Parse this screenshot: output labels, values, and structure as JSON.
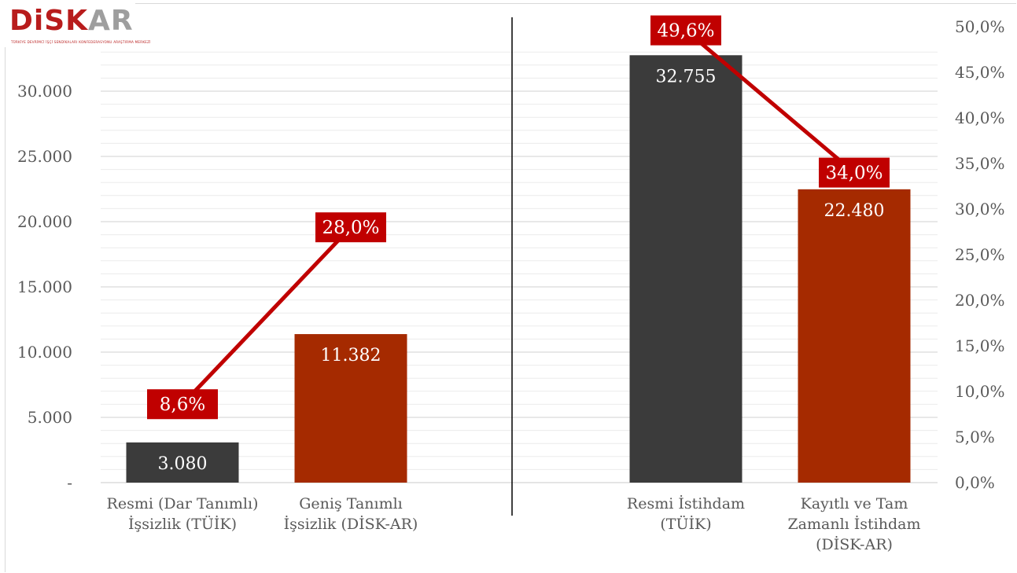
{
  "logo": {
    "main": "DiSK",
    "accent": "AR",
    "subtitle": "TÜRKİYE DEVRİMCİ İŞÇİ SENDİKALARI KONFEDERASYONU ARAŞTIRMA MERKEZİ"
  },
  "chart_data": {
    "type": "bar",
    "title": "",
    "grid": true,
    "colors": {
      "official": "#3b3b3b",
      "alternative": "#a52a00",
      "line": "#c00000",
      "label_box": "#c00000"
    },
    "left_axis": {
      "range": [
        0,
        33000
      ],
      "ticks": [
        {
          "value": 0,
          "label": "-"
        },
        {
          "value": 5000,
          "label": "5.000"
        },
        {
          "value": 10000,
          "label": "10.000"
        },
        {
          "value": 15000,
          "label": "15.000"
        },
        {
          "value": 20000,
          "label": "20.000"
        },
        {
          "value": 25000,
          "label": "25.000"
        },
        {
          "value": 30000,
          "label": "30.000"
        }
      ]
    },
    "right_axis": {
      "range": [
        0,
        52
      ],
      "ticks": [
        {
          "value": 0,
          "label": "0,0%"
        },
        {
          "value": 5,
          "label": "5,0%"
        },
        {
          "value": 10,
          "label": "10,0%"
        },
        {
          "value": 15,
          "label": "15,0%"
        },
        {
          "value": 20,
          "label": "20,0%"
        },
        {
          "value": 25,
          "label": "25,0%"
        },
        {
          "value": 30,
          "label": "30,0%"
        },
        {
          "value": 35,
          "label": "35,0%"
        },
        {
          "value": 40,
          "label": "40,0%"
        },
        {
          "value": 45,
          "label": "45,0%"
        },
        {
          "value": 50,
          "label": "50,0%"
        }
      ]
    },
    "groups": [
      {
        "categories": [
          {
            "lines": [
              "Resmi (Dar Tanımlı)",
              "İşsizlik (TÜİK)"
            ],
            "value": 3080,
            "value_label": "3.080",
            "rate": 8.6,
            "rate_label": "8,6%",
            "color_key": "official"
          },
          {
            "lines": [
              "Geniş Tanımlı",
              "İşsizlik (DİSK-AR)"
            ],
            "value": 11382,
            "value_label": "11.382",
            "rate": 28.0,
            "rate_label": "28,0%",
            "color_key": "alternative"
          }
        ]
      },
      {
        "categories": [
          {
            "lines": [
              "Resmi İstihdam",
              "(TÜİK)"
            ],
            "value": 32755,
            "value_label": "32.755",
            "rate": 49.6,
            "rate_label": "49,6%",
            "color_key": "official"
          },
          {
            "lines": [
              "Kayıtlı ve Tam",
              "Zamanlı İstihdam",
              "(DİSK-AR)"
            ],
            "value": 22480,
            "value_label": "22.480",
            "rate": 34.0,
            "rate_label": "34,0%",
            "color_key": "alternative"
          }
        ]
      }
    ]
  }
}
